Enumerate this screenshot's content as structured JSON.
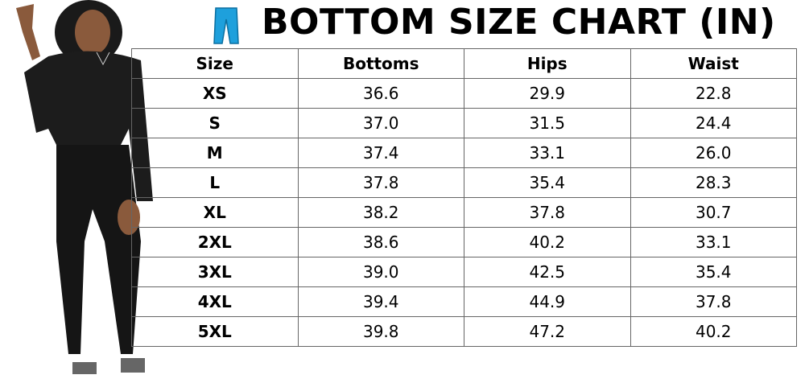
{
  "header": {
    "title": "BOTTOM SIZE CHART (IN)"
  },
  "table": {
    "columns": [
      "Size",
      "Bottoms",
      "Hips",
      "Waist"
    ],
    "rows": [
      [
        "XS",
        "36.6",
        "29.9",
        "22.8"
      ],
      [
        "S",
        "37.0",
        "31.5",
        "24.4"
      ],
      [
        "M",
        "37.4",
        "33.1",
        "26.0"
      ],
      [
        "L",
        "37.8",
        "35.4",
        "28.3"
      ],
      [
        "XL",
        "38.2",
        "37.8",
        "30.7"
      ],
      [
        "2XL",
        "38.6",
        "40.2",
        "33.1"
      ],
      [
        "3XL",
        "39.0",
        "42.5",
        "35.4"
      ],
      [
        "4XL",
        "39.4",
        "44.9",
        "37.8"
      ],
      [
        "5XL",
        "39.8",
        "47.2",
        "40.2"
      ]
    ]
  }
}
